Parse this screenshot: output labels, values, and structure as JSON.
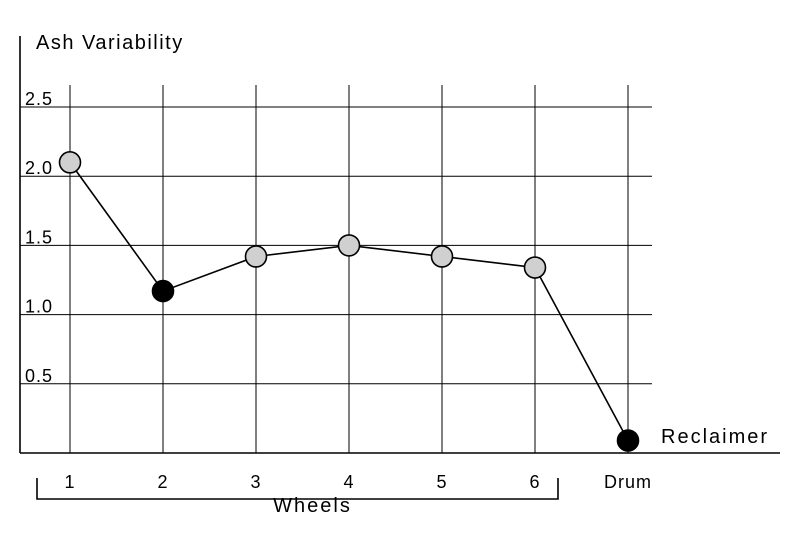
{
  "chart_data": {
    "type": "line",
    "ylabel": "Ash Variability",
    "xlabel": "Reclaimer",
    "y_ticks": [
      "0.5",
      "1.0",
      "1.5",
      "2.0",
      "2.5"
    ],
    "ylim": [
      0,
      2.5
    ],
    "grid": true,
    "categories": [
      "1",
      "2",
      "3",
      "4",
      "5",
      "6",
      "Drum"
    ],
    "series": [
      {
        "values": [
          2.1,
          1.17,
          1.42,
          1.5,
          1.42,
          1.34,
          0.09
        ],
        "marker_fills": [
          "#d0d0d0",
          "#000000",
          "#d0d0d0",
          "#d0d0d0",
          "#d0d0d0",
          "#d0d0d0",
          "#000000"
        ]
      }
    ],
    "group_bracket": {
      "label": "Wheels",
      "from": "1",
      "to": "6"
    },
    "colors": {
      "line": "#000000",
      "grid": "#000000",
      "hollow_marker": "#d0d0d0",
      "solid_marker": "#000000"
    }
  }
}
